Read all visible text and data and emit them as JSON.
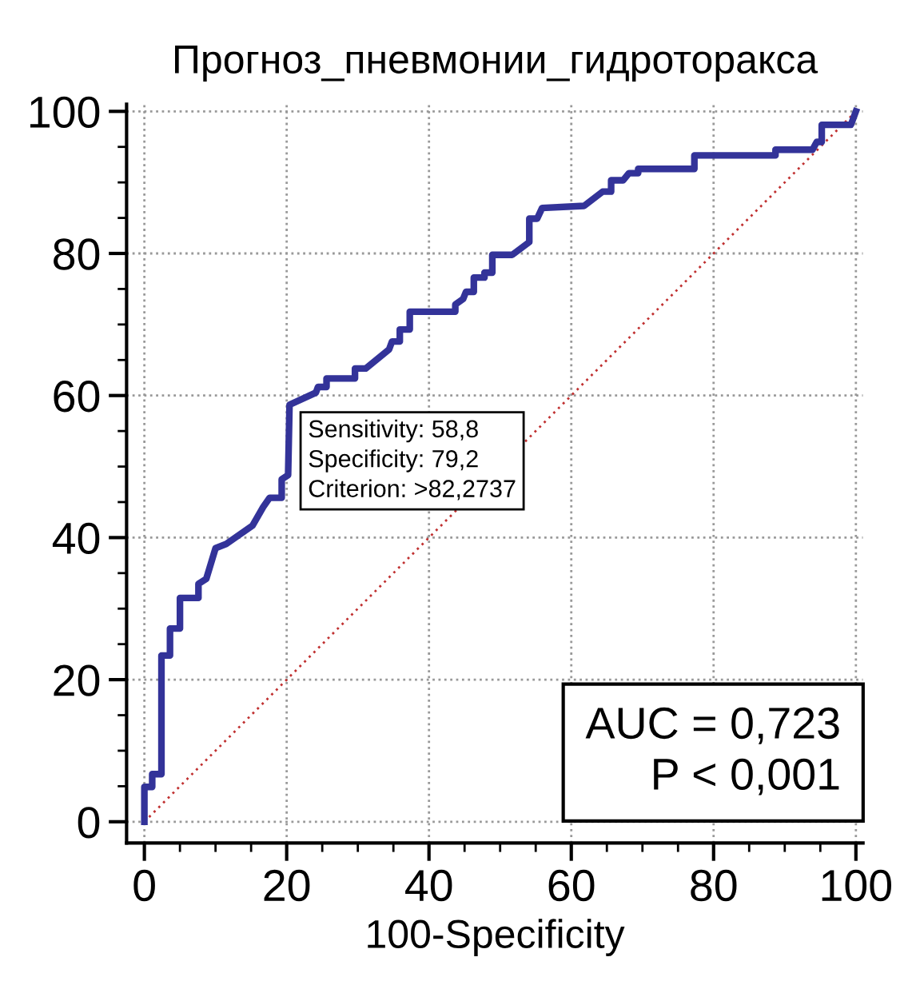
{
  "chart_data": {
    "type": "line",
    "title": "Прогноз_пневмонии_гидроторакса",
    "xlabel": "100-Specificity",
    "xlim": [
      -2.5,
      101
    ],
    "ylim": [
      -3,
      101
    ],
    "xticks": [
      0,
      20,
      40,
      60,
      80,
      100
    ],
    "yticks": [
      0,
      20,
      40,
      60,
      80,
      100
    ],
    "grid": true,
    "legend": false,
    "series": [
      {
        "color": "#333399",
        "line_style": "solid",
        "x": [
          0,
          0,
          1.1,
          1.1,
          2.4,
          2.4,
          3.6,
          3.6,
          5.0,
          5.0,
          7.6,
          7.6,
          8.7,
          10.0,
          11.5,
          15.2,
          16.7,
          17.6,
          19.3,
          19.3,
          20.2,
          20.4,
          24.1,
          24.4,
          25.6,
          25.6,
          29.6,
          29.6,
          31.1,
          34.4,
          34.8,
          35.9,
          35.9,
          37.3,
          37.3,
          43.7,
          43.7,
          44.8,
          45.2,
          46.3,
          46.3,
          47.8,
          47.8,
          48.9,
          48.9,
          51.7,
          54.1,
          54.1,
          55.2,
          55.9,
          61.8,
          64.4,
          65.6,
          65.6,
          67.3,
          68.1,
          69.4,
          69.4,
          77.3,
          77.3,
          88.7,
          88.7,
          93.9,
          94.5,
          95.2,
          95.2,
          99.3,
          100
        ],
        "values": [
          0,
          4.9,
          4.9,
          6.7,
          6.7,
          23.4,
          23.4,
          27.2,
          27.2,
          31.5,
          31.5,
          33.5,
          34.2,
          38.5,
          39.1,
          41.7,
          44.3,
          45.6,
          45.6,
          48.2,
          48.8,
          58.7,
          60.4,
          61.2,
          61.2,
          62.4,
          62.4,
          63.8,
          63.8,
          66.5,
          67.6,
          67.6,
          69.3,
          69.3,
          71.8,
          71.8,
          72.8,
          73.6,
          74.6,
          74.6,
          76.6,
          76.6,
          77.3,
          77.3,
          79.8,
          79.8,
          81.6,
          84.9,
          84.9,
          86.4,
          86.7,
          88.7,
          88.7,
          90.3,
          90.3,
          91.3,
          91.3,
          91.9,
          91.9,
          93.8,
          93.8,
          94.6,
          94.6,
          95.7,
          95.7,
          98.1,
          98.1,
          100
        ]
      },
      {
        "color": "#c03030",
        "line_style": "dotted",
        "x": [
          0,
          100
        ],
        "values": [
          0,
          100
        ]
      }
    ],
    "annotations": [
      {
        "text": "Sensitivity: 58,8\nSpecificity: 79,2\nCriterion: >82,2737",
        "x": 20.8,
        "y": 58.8
      },
      "AUC = 0,723\nP < 0,001"
    ]
  }
}
